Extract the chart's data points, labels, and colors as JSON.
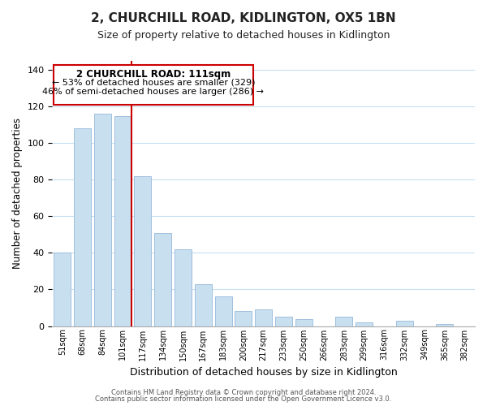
{
  "title": "2, CHURCHILL ROAD, KIDLINGTON, OX5 1BN",
  "subtitle": "Size of property relative to detached houses in Kidlington",
  "xlabel": "Distribution of detached houses by size in Kidlington",
  "ylabel": "Number of detached properties",
  "categories": [
    "51sqm",
    "68sqm",
    "84sqm",
    "101sqm",
    "117sqm",
    "134sqm",
    "150sqm",
    "167sqm",
    "183sqm",
    "200sqm",
    "217sqm",
    "233sqm",
    "250sqm",
    "266sqm",
    "283sqm",
    "299sqm",
    "316sqm",
    "332sqm",
    "349sqm",
    "365sqm",
    "382sqm"
  ],
  "values": [
    40,
    108,
    116,
    115,
    82,
    51,
    42,
    23,
    16,
    8,
    9,
    5,
    4,
    0,
    5,
    2,
    0,
    3,
    0,
    1,
    0
  ],
  "bar_color": "#c8dff0",
  "bar_edge_color": "#a0c0de",
  "highlight_line_color": "#cc0000",
  "ylim": [
    0,
    145
  ],
  "yticks": [
    0,
    20,
    40,
    60,
    80,
    100,
    120,
    140
  ],
  "annotation_title": "2 CHURCHILL ROAD: 111sqm",
  "annotation_line1": "← 53% of detached houses are smaller (329)",
  "annotation_line2": "46% of semi-detached houses are larger (286) →",
  "annotation_box_color": "#ffffff",
  "annotation_box_edge_color": "#cc0000",
  "footer1": "Contains HM Land Registry data © Crown copyright and database right 2024.",
  "footer2": "Contains public sector information licensed under the Open Government Licence v3.0.",
  "background_color": "#ffffff",
  "grid_color": "#c8dff0",
  "highlight_bar_index": 3
}
